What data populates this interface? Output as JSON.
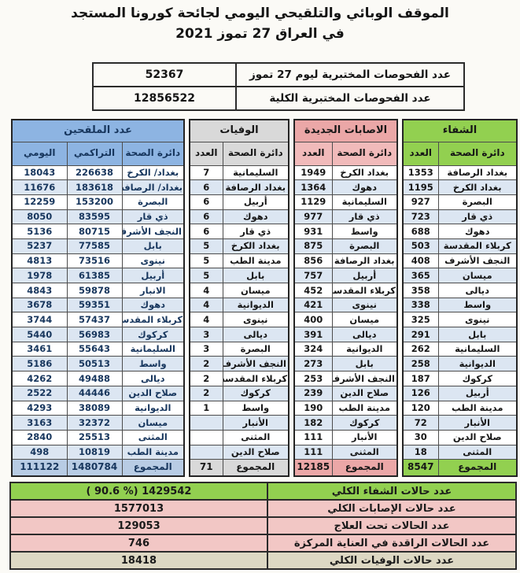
{
  "title": {
    "line1": "الموقف الوبائي والتلقيحي اليومي لجائحة كورونا المستجد",
    "line2": "في العراق 27 تموز 2021"
  },
  "tests": {
    "rows": [
      {
        "label": "عدد الفحوصات المختبرية  ليوم 27 تموز",
        "value": "52367"
      },
      {
        "label": "عدد الفحوصات المختبرية الكلية",
        "value": "12856522"
      }
    ]
  },
  "tables": {
    "vaccinated": {
      "title": "عدد الملقحين",
      "columns": [
        "دائرة الصحة",
        "التراكمي",
        "اليومي"
      ],
      "rows": [
        [
          "بغداد/ الكرخ",
          "226638",
          "18043"
        ],
        [
          "بغداد/ الرصافة",
          "183618",
          "11676"
        ],
        [
          "البصرة",
          "153200",
          "12259"
        ],
        [
          "ذي قار",
          "83595",
          "8050"
        ],
        [
          "النجف الأشرف",
          "80715",
          "5136"
        ],
        [
          "بابل",
          "77585",
          "5237"
        ],
        [
          "نينوى",
          "73516",
          "4813"
        ],
        [
          "أربيل",
          "61385",
          "1978"
        ],
        [
          "الانبار",
          "59878",
          "4843"
        ],
        [
          "دهوك",
          "59351",
          "3678"
        ],
        [
          "كربلاء المقدسة",
          "57437",
          "3744"
        ],
        [
          "كركوك",
          "56983",
          "5440"
        ],
        [
          "السليمانية",
          "55643",
          "3461"
        ],
        [
          "واسط",
          "50513",
          "5186"
        ],
        [
          "ديالى",
          "49488",
          "4262"
        ],
        [
          "صلاح الدين",
          "44446",
          "2522"
        ],
        [
          "الديوانية",
          "38089",
          "4293"
        ],
        [
          "ميسان",
          "32372",
          "3163"
        ],
        [
          "المثنى",
          "25513",
          "2840"
        ],
        [
          "مدينة الطب",
          "10819",
          "498"
        ]
      ],
      "total": [
        "المجموع",
        "1480784",
        "111122"
      ]
    },
    "deaths": {
      "title": "الوفيات",
      "columns": [
        "دائرة الصحة",
        "العدد"
      ],
      "rows": [
        [
          "السليمانية",
          "7"
        ],
        [
          "بغداد الرصافة",
          "6"
        ],
        [
          "أربيل",
          "6"
        ],
        [
          "دهوك",
          "6"
        ],
        [
          "ذي قار",
          "6"
        ],
        [
          "بغداد الكرخ",
          "5"
        ],
        [
          "مدينة الطب",
          "5"
        ],
        [
          "بابل",
          "5"
        ],
        [
          "ميسان",
          "4"
        ],
        [
          "الديوانية",
          "4"
        ],
        [
          "نينوى",
          "4"
        ],
        [
          "ديالى",
          "3"
        ],
        [
          "البصرة",
          "3"
        ],
        [
          "النجف الأشرف",
          "2"
        ],
        [
          "كربلاء المقدسة",
          "2"
        ],
        [
          "كركوك",
          "2"
        ],
        [
          "واسط",
          "1"
        ],
        [
          "الأنبار",
          ""
        ],
        [
          "المثنى",
          ""
        ],
        [
          "صلاح الدين",
          ""
        ]
      ],
      "total": [
        "المجموع",
        "71"
      ]
    },
    "infections": {
      "title": "الاصابات الجديدة",
      "columns": [
        "دائرة الصحة",
        "العدد"
      ],
      "rows": [
        [
          "بغداد الكرخ",
          "1949"
        ],
        [
          "دهوك",
          "1364"
        ],
        [
          "السليمانية",
          "1129"
        ],
        [
          "ذي قار",
          "977"
        ],
        [
          "واسط",
          "931"
        ],
        [
          "البصرة",
          "875"
        ],
        [
          "بغداد الرصافة",
          "856"
        ],
        [
          "أربيل",
          "757"
        ],
        [
          "كربلاء المقدسة",
          "452"
        ],
        [
          "نينوى",
          "421"
        ],
        [
          "ميسان",
          "400"
        ],
        [
          "ديالى",
          "391"
        ],
        [
          "الديوانية",
          "324"
        ],
        [
          "بابل",
          "273"
        ],
        [
          "النجف الأشرف",
          "253"
        ],
        [
          "صلاح الدين",
          "239"
        ],
        [
          "مدينة الطب",
          "190"
        ],
        [
          "كركوك",
          "182"
        ],
        [
          "الأنبار",
          "111"
        ],
        [
          "المثنى",
          "111"
        ]
      ],
      "total": [
        "المجموع",
        "12185"
      ]
    },
    "recovery": {
      "title": "الشفاء",
      "columns": [
        "دائرة الصحة",
        "العدد"
      ],
      "rows": [
        [
          "بغداد الرصافة",
          "1353"
        ],
        [
          "بغداد الكرخ",
          "1195"
        ],
        [
          "البصرة",
          "927"
        ],
        [
          "ذي قار",
          "723"
        ],
        [
          "دهوك",
          "688"
        ],
        [
          "كربلاء المقدسة",
          "503"
        ],
        [
          "النجف الأشرف",
          "408"
        ],
        [
          "ميسان",
          "365"
        ],
        [
          "ديالى",
          "358"
        ],
        [
          "واسط",
          "338"
        ],
        [
          "نينوى",
          "325"
        ],
        [
          "بابل",
          "291"
        ],
        [
          "السليمانية",
          "262"
        ],
        [
          "الديوانية",
          "258"
        ],
        [
          "كركوك",
          "187"
        ],
        [
          "أربيل",
          "126"
        ],
        [
          "مدينة الطب",
          "120"
        ],
        [
          "الأنبار",
          "72"
        ],
        [
          "صلاح الدين",
          "30"
        ],
        [
          "المثنى",
          "18"
        ]
      ],
      "total": [
        "المجموع",
        "8547"
      ]
    }
  },
  "summary": {
    "rows": [
      {
        "label": "عدد حالات الشفاء الكلي",
        "value": "( 90.6 %)  1429542"
      },
      {
        "label": "عدد حالات الإصابات الكلي",
        "value": "1577013"
      },
      {
        "label": "عدد الحالات تحت العلاج",
        "value": "129053"
      },
      {
        "label": "عدد الحالات الراقدة في العناية المركزة",
        "value": "746"
      },
      {
        "label": "عدد حالات الوفيات الكلي",
        "value": "18418"
      }
    ]
  },
  "colors": {
    "green": "#92d050",
    "blue_header": "#8db4e2",
    "blue_total": "#b8cce4",
    "navy_text": "#17365d",
    "gray_header": "#d9d9d9",
    "pink_header": "#eba7a7",
    "pink_col": "#f1baba",
    "pink_light": "#f2c7c5",
    "beige": "#ddd8c3",
    "alt_row": "#dce6f2"
  }
}
